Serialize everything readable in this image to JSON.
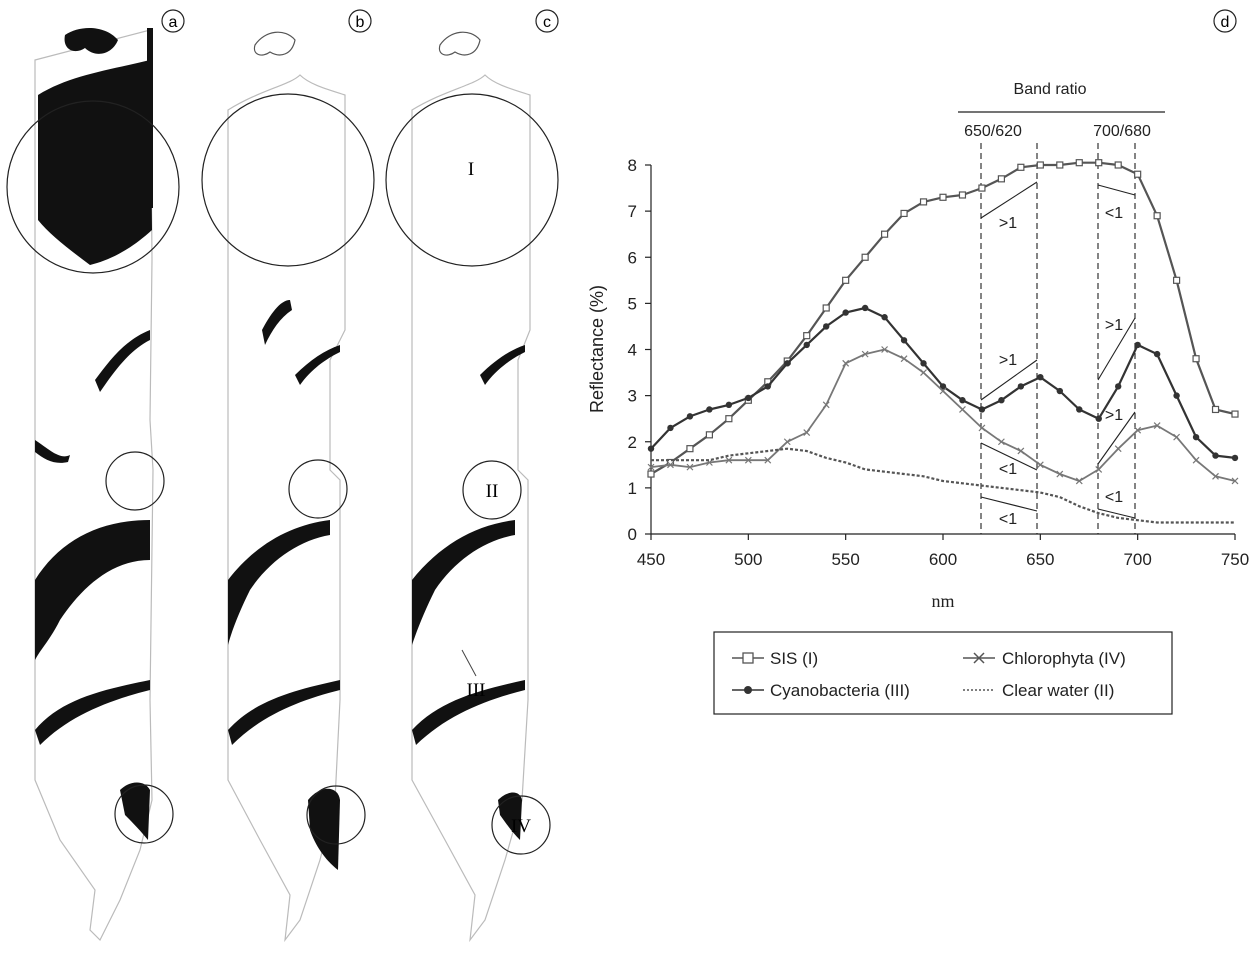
{
  "panels": [
    {
      "letter": "a",
      "circle_labels": []
    },
    {
      "letter": "b",
      "circle_labels": []
    },
    {
      "letter": "c",
      "circle_labels": [
        "I",
        "II",
        "III",
        "IV"
      ]
    },
    {
      "letter": "d"
    }
  ],
  "band_ratio": {
    "title": "Band ratio",
    "pairs": [
      "650/620",
      "700/680"
    ],
    "annotations": [
      ">1",
      "<1",
      ">1",
      ">1",
      "<1",
      ">1",
      "<1",
      "<1"
    ]
  },
  "colors": {
    "sis": "#555555",
    "cyano": "#333333",
    "chloro": "#777777",
    "water": "#555555"
  },
  "chart_data": {
    "type": "line",
    "xlabel": "nm",
    "ylabel": "Reflectance (%)",
    "xlim": [
      450,
      750
    ],
    "ylim": [
      0,
      8
    ],
    "xticks": [
      450,
      500,
      550,
      600,
      650,
      700,
      750
    ],
    "yticks": [
      0,
      1,
      2,
      3,
      4,
      5,
      6,
      7,
      8
    ],
    "grid": false,
    "legend_position": "bottom",
    "series": [
      {
        "name": "SIS (I)",
        "marker": "square",
        "x": [
          450,
          460,
          470,
          480,
          490,
          500,
          510,
          520,
          530,
          540,
          550,
          560,
          570,
          580,
          590,
          600,
          610,
          620,
          630,
          640,
          650,
          660,
          670,
          680,
          690,
          700,
          710,
          720,
          730,
          740,
          750
        ],
        "y": [
          1.3,
          1.55,
          1.85,
          2.15,
          2.5,
          2.9,
          3.3,
          3.75,
          4.3,
          4.9,
          5.5,
          6.0,
          6.5,
          6.95,
          7.2,
          7.3,
          7.35,
          7.5,
          7.7,
          7.95,
          8.0,
          8.0,
          8.05,
          8.05,
          8.0,
          7.8,
          6.9,
          5.5,
          3.8,
          2.7,
          2.6
        ]
      },
      {
        "name": "Cyanobacteria (III)",
        "marker": "dot",
        "x": [
          450,
          460,
          470,
          480,
          490,
          500,
          510,
          520,
          530,
          540,
          550,
          560,
          570,
          580,
          590,
          600,
          610,
          620,
          630,
          640,
          650,
          660,
          670,
          680,
          690,
          700,
          710,
          720,
          730,
          740,
          750
        ],
        "y": [
          1.85,
          2.3,
          2.55,
          2.7,
          2.8,
          2.95,
          3.2,
          3.7,
          4.1,
          4.5,
          4.8,
          4.9,
          4.7,
          4.2,
          3.7,
          3.2,
          2.9,
          2.7,
          2.9,
          3.2,
          3.4,
          3.1,
          2.7,
          2.5,
          3.2,
          4.1,
          3.9,
          3.0,
          2.1,
          1.7,
          1.65
        ]
      },
      {
        "name": "Chlorophyta (IV)",
        "marker": "x",
        "x": [
          450,
          460,
          470,
          480,
          490,
          500,
          510,
          520,
          530,
          540,
          550,
          560,
          570,
          580,
          590,
          600,
          610,
          620,
          630,
          640,
          650,
          660,
          670,
          680,
          690,
          700,
          710,
          720,
          730,
          740,
          750
        ],
        "y": [
          1.45,
          1.5,
          1.45,
          1.55,
          1.6,
          1.6,
          1.6,
          2.0,
          2.2,
          2.8,
          3.7,
          3.9,
          4.0,
          3.8,
          3.5,
          3.1,
          2.7,
          2.3,
          2.0,
          1.8,
          1.5,
          1.3,
          1.15,
          1.4,
          1.85,
          2.25,
          2.35,
          2.1,
          1.6,
          1.25,
          1.15
        ]
      },
      {
        "name": "Clear water (II)",
        "marker": "none",
        "x": [
          450,
          460,
          470,
          480,
          490,
          500,
          510,
          520,
          530,
          540,
          550,
          560,
          570,
          580,
          590,
          600,
          610,
          620,
          630,
          640,
          650,
          660,
          670,
          680,
          690,
          700,
          710,
          720,
          730,
          740,
          750
        ],
        "y": [
          1.6,
          1.6,
          1.6,
          1.6,
          1.7,
          1.75,
          1.8,
          1.85,
          1.8,
          1.65,
          1.55,
          1.4,
          1.35,
          1.3,
          1.25,
          1.15,
          1.1,
          1.05,
          1.0,
          0.95,
          0.9,
          0.8,
          0.6,
          0.45,
          0.35,
          0.3,
          0.25,
          0.25,
          0.25,
          0.25,
          0.25
        ]
      }
    ]
  }
}
